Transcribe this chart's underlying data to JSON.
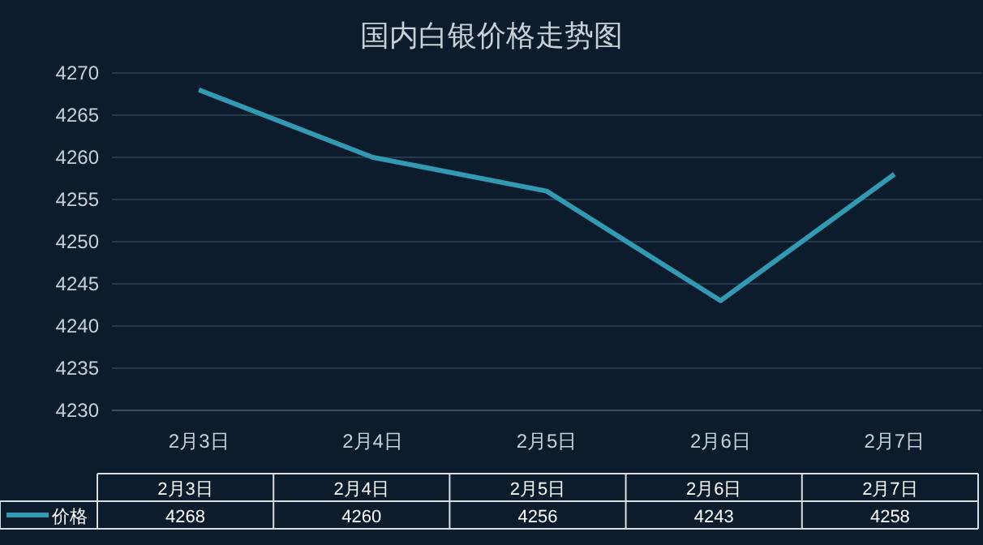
{
  "chart_data": {
    "type": "line",
    "title": "国内白银价格走势图",
    "categories": [
      "2月3日",
      "2月4日",
      "2月5日",
      "2月6日",
      "2月7日"
    ],
    "series": [
      {
        "name": "价格",
        "color": "#3399b3",
        "values": [
          4268,
          4260,
          4256,
          4243,
          4258
        ]
      }
    ],
    "ylim": [
      4230,
      4270
    ],
    "yticks": [
      4230,
      4235,
      4240,
      4245,
      4250,
      4255,
      4260,
      4265,
      4270
    ],
    "grid": "y",
    "legend": "bottom",
    "data_labels": true
  }
}
